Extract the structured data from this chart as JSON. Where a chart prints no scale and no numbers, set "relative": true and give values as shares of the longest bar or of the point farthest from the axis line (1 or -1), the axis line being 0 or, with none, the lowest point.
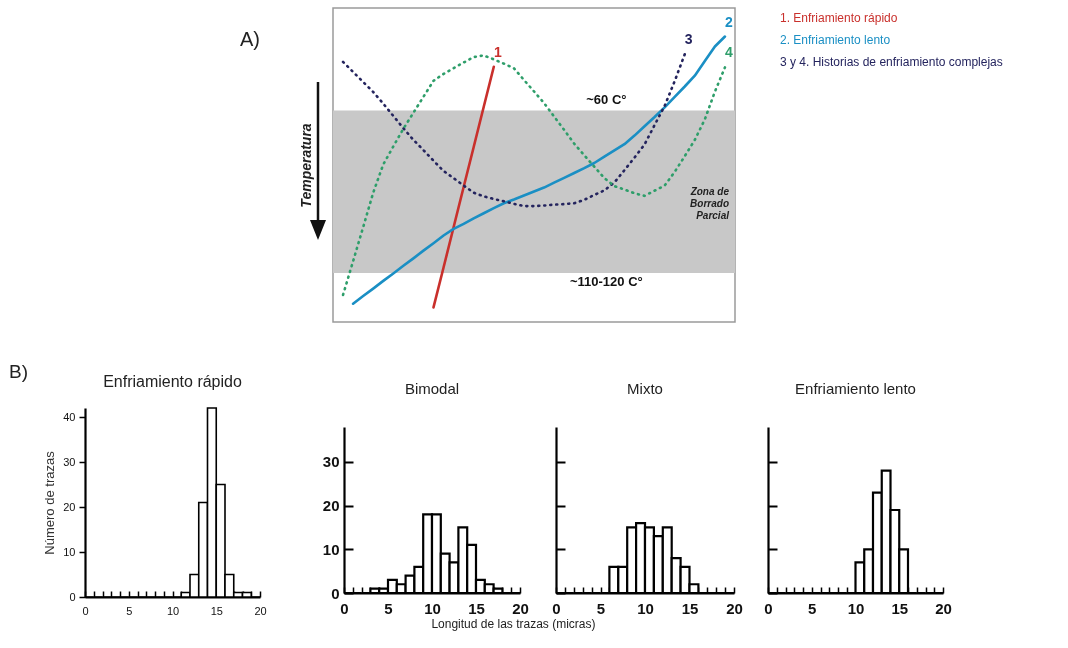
{
  "chart_data": [
    {
      "type": "line",
      "title": "A)",
      "ylabel": "Temperatura",
      "relative": true,
      "grid": false,
      "categories": [
        null,
        null,
        null,
        null,
        null,
        null,
        null,
        null,
        null,
        null,
        null,
        null,
        null,
        null,
        null,
        null,
        null,
        null,
        null,
        null,
        null,
        null,
        null,
        null,
        null,
        null,
        null,
        null,
        null,
        null,
        null,
        null,
        null,
        null,
        null,
        null,
        null,
        null,
        null,
        null,
        null
      ],
      "series": [
        {
          "name": "1",
          "color": "#c9302c",
          "line_style": "solid",
          "values": [
            null,
            null,
            null,
            null,
            null,
            null,
            null,
            null,
            null,
            null,
            0.051,
            0.191,
            0.332,
            0.473,
            0.613,
            0.754,
            0.894,
            null,
            null,
            null,
            null,
            null,
            null,
            null,
            null,
            null,
            null,
            null,
            null,
            null,
            null,
            null,
            null,
            null,
            null,
            null,
            null,
            null,
            null,
            null,
            null
          ]
        },
        {
          "name": "2",
          "color": "#1a8fc4",
          "line_style": "solid",
          "values": [
            null,
            null,
            0.064,
            0.091,
            0.117,
            0.144,
            0.17,
            0.197,
            0.223,
            0.25,
            0.276,
            0.303,
            0.326,
            0.344,
            0.363,
            0.381,
            0.399,
            0.416,
            0.429,
            0.443,
            0.457,
            0.471,
            0.488,
            0.505,
            0.522,
            0.539,
            0.557,
            0.579,
            0.601,
            0.623,
            0.653,
            0.686,
            0.718,
            0.752,
            0.789,
            0.825,
            0.863,
            0.914,
            0.965,
            1.0,
            null
          ]
        },
        {
          "name": "3",
          "color": "#24245e",
          "line_style": "dotted",
          "values": [
            null,
            0.911,
            0.876,
            0.841,
            0.806,
            0.765,
            0.722,
            0.679,
            0.638,
            0.602,
            0.565,
            0.529,
            0.504,
            0.478,
            0.453,
            0.44,
            0.431,
            0.423,
            0.414,
            0.406,
            0.406,
            0.408,
            0.411,
            0.413,
            0.416,
            0.428,
            0.445,
            0.461,
            0.489,
            0.532,
            0.576,
            0.622,
            0.69,
            0.757,
            0.844,
            0.938,
            null,
            null,
            null,
            null,
            null
          ]
        },
        {
          "name": "4",
          "color": "#2e9e6a",
          "line_style": "dotted",
          "values": [
            null,
            0.095,
            0.213,
            0.332,
            0.453,
            0.552,
            0.615,
            0.677,
            0.733,
            0.789,
            0.845,
            0.869,
            0.889,
            0.909,
            0.928,
            0.934,
            0.92,
            0.905,
            0.889,
            0.848,
            0.808,
            0.767,
            0.72,
            0.673,
            0.625,
            0.584,
            0.544,
            0.504,
            0.476,
            0.464,
            0.451,
            0.442,
            0.46,
            0.478,
            0.526,
            0.581,
            0.638,
            0.71,
            0.807,
            0.892,
            null
          ]
        }
      ],
      "bands": [
        {
          "axis": "y",
          "from": 0.172,
          "to": 0.741,
          "label": "Zona de Borrado Parcial",
          "color": "#c8c8c8"
        }
      ],
      "annotations": [
        {
          "text": "~60 C°",
          "y": 0.741
        },
        {
          "text": "~110-120 C°",
          "y": 0.172
        },
        "1. Enfriamiento rápido",
        "2. Enfriamiento lento",
        "3 y 4. Historias de enfriamiento complejas"
      ]
    },
    {
      "type": "histogram",
      "title": "Enfriamiento rápido",
      "ylabel": "Número de trazas",
      "color": "#000000",
      "grid": false,
      "bins": [
        0,
        1,
        2,
        3,
        4,
        5,
        6,
        7,
        8,
        9,
        10,
        11,
        12,
        13,
        14,
        15,
        16,
        17,
        18,
        19,
        20
      ],
      "values": [
        0,
        0,
        0,
        0,
        0,
        0,
        0,
        0,
        0,
        0,
        0,
        1,
        5,
        21,
        42,
        25,
        5,
        1,
        1,
        0
      ],
      "xlim": [
        0,
        20
      ],
      "xticks": [
        0,
        {
          "value": 1,
          "label": null
        },
        {
          "value": 2,
          "label": null
        },
        {
          "value": 3,
          "label": null
        },
        {
          "value": 4,
          "label": null
        },
        5,
        {
          "value": 6,
          "label": null
        },
        {
          "value": 7,
          "label": null
        },
        {
          "value": 8,
          "label": null
        },
        {
          "value": 9,
          "label": null
        },
        10,
        {
          "value": 11,
          "label": null
        },
        {
          "value": 12,
          "label": null
        },
        {
          "value": 13,
          "label": null
        },
        {
          "value": 14,
          "label": null
        },
        15,
        {
          "value": 16,
          "label": null
        },
        {
          "value": 17,
          "label": null
        },
        {
          "value": 18,
          "label": null
        },
        {
          "value": 19,
          "label": null
        },
        20
      ],
      "ylim": [
        0,
        42
      ],
      "yticks": [
        0,
        10,
        20,
        30,
        40
      ],
      "annotations": [
        "B)"
      ]
    },
    {
      "type": "histogram",
      "title": "Bimodal",
      "xlabel": "Longitud de las trazas (micras)",
      "color": "#000000",
      "grid": false,
      "bins": [
        0,
        1,
        2,
        3,
        4,
        5,
        6,
        7,
        8,
        9,
        10,
        11,
        12,
        13,
        14,
        15,
        16,
        17,
        18,
        19,
        20
      ],
      "values": [
        0,
        0,
        0,
        1,
        1,
        3,
        2,
        4,
        6,
        18,
        18,
        9,
        7,
        15,
        11,
        3,
        2,
        1,
        0,
        0
      ],
      "xlim": [
        0,
        20
      ],
      "xticks": [
        0,
        {
          "value": 1,
          "label": null
        },
        {
          "value": 2,
          "label": null
        },
        {
          "value": 3,
          "label": null
        },
        {
          "value": 4,
          "label": null
        },
        5,
        {
          "value": 6,
          "label": null
        },
        {
          "value": 7,
          "label": null
        },
        {
          "value": 8,
          "label": null
        },
        {
          "value": 9,
          "label": null
        },
        10,
        {
          "value": 11,
          "label": null
        },
        {
          "value": 12,
          "label": null
        },
        {
          "value": 13,
          "label": null
        },
        {
          "value": 14,
          "label": null
        },
        15,
        {
          "value": 16,
          "label": null
        },
        {
          "value": 17,
          "label": null
        },
        {
          "value": 18,
          "label": null
        },
        {
          "value": 19,
          "label": null
        },
        20
      ],
      "ylim": [
        0,
        38
      ],
      "yticks": [
        0,
        10,
        20,
        30
      ]
    },
    {
      "type": "histogram",
      "title": "Mixto",
      "color": "#000000",
      "grid": false,
      "tick_labels": "x",
      "bins": [
        0,
        1,
        2,
        3,
        4,
        5,
        6,
        7,
        8,
        9,
        10,
        11,
        12,
        13,
        14,
        15,
        16,
        17,
        18,
        19,
        20
      ],
      "values": [
        0,
        0,
        0,
        0,
        0,
        0,
        6,
        6,
        15,
        16,
        15,
        13,
        15,
        8,
        6,
        2,
        0,
        0,
        0,
        0
      ],
      "xlim": [
        0,
        20
      ],
      "xticks": [
        0,
        {
          "value": 1,
          "label": null
        },
        {
          "value": 2,
          "label": null
        },
        {
          "value": 3,
          "label": null
        },
        {
          "value": 4,
          "label": null
        },
        5,
        {
          "value": 6,
          "label": null
        },
        {
          "value": 7,
          "label": null
        },
        {
          "value": 8,
          "label": null
        },
        {
          "value": 9,
          "label": null
        },
        10,
        {
          "value": 11,
          "label": null
        },
        {
          "value": 12,
          "label": null
        },
        {
          "value": 13,
          "label": null
        },
        {
          "value": 14,
          "label": null
        },
        15,
        {
          "value": 16,
          "label": null
        },
        {
          "value": 17,
          "label": null
        },
        {
          "value": 18,
          "label": null
        },
        {
          "value": 19,
          "label": null
        },
        20
      ],
      "ylim": [
        0,
        38
      ],
      "yticks": [
        0,
        10,
        20,
        30
      ]
    },
    {
      "type": "histogram",
      "title": "Enfriamiento lento",
      "color": "#000000",
      "grid": false,
      "tick_labels": "x",
      "bins": [
        0,
        1,
        2,
        3,
        4,
        5,
        6,
        7,
        8,
        9,
        10,
        11,
        12,
        13,
        14,
        15,
        16,
        17,
        18,
        19,
        20
      ],
      "values": [
        0,
        0,
        0,
        0,
        0,
        0,
        0,
        0,
        0,
        0,
        7,
        10,
        23,
        28,
        19,
        10,
        0,
        0,
        0,
        0
      ],
      "xlim": [
        0,
        20
      ],
      "xticks": [
        0,
        {
          "value": 1,
          "label": null
        },
        {
          "value": 2,
          "label": null
        },
        {
          "value": 3,
          "label": null
        },
        {
          "value": 4,
          "label": null
        },
        5,
        {
          "value": 6,
          "label": null
        },
        {
          "value": 7,
          "label": null
        },
        {
          "value": 8,
          "label": null
        },
        {
          "value": 9,
          "label": null
        },
        10,
        {
          "value": 11,
          "label": null
        },
        {
          "value": 12,
          "label": null
        },
        {
          "value": 13,
          "label": null
        },
        {
          "value": 14,
          "label": null
        },
        15,
        {
          "value": 16,
          "label": null
        },
        {
          "value": 17,
          "label": null
        },
        {
          "value": 18,
          "label": null
        },
        {
          "value": 19,
          "label": null
        },
        20
      ],
      "ylim": [
        0,
        38
      ],
      "yticks": [
        0,
        10,
        20,
        30
      ]
    }
  ]
}
